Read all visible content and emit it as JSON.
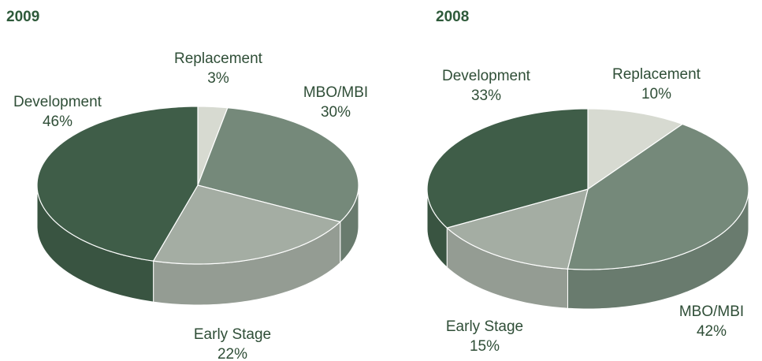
{
  "chart_data": [
    {
      "type": "pie",
      "title": "2009",
      "categories": [
        "Replacement",
        "MBO/MBI",
        "Early Stage",
        "Development"
      ],
      "values": [
        3,
        30,
        22,
        46
      ],
      "value_labels": [
        "3%",
        "30%",
        "22%",
        "46%"
      ],
      "colors": [
        "#d7dad1",
        "#75897a",
        "#a4ada3",
        "#3f5d48"
      ]
    },
    {
      "type": "pie",
      "title": "2008",
      "categories": [
        "Replacement",
        "MBO/MBI",
        "Early Stage",
        "Development"
      ],
      "values": [
        10,
        42,
        15,
        33
      ],
      "value_labels": [
        "10%",
        "42%",
        "15%",
        "33%"
      ],
      "colors": [
        "#d7dad1",
        "#75897a",
        "#a4ada3",
        "#3f5d48"
      ]
    }
  ]
}
